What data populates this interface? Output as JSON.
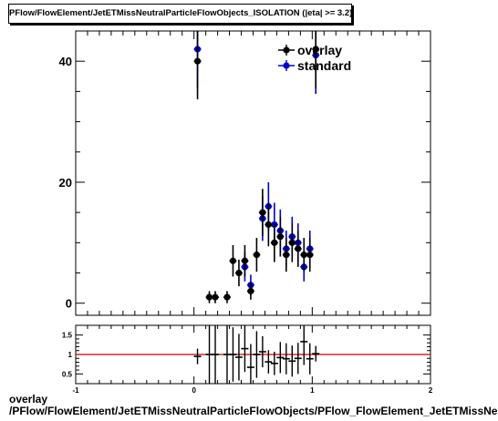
{
  "title": "PFlow/FlowElement/JetETMissNeutralParticleFlowObjects_ISOLATION (|eta| >= 3.2)",
  "caption": {
    "line1": "overlay",
    "line2": "/PFlow/FlowElement/JetETMissNeutralParticleFlowObjects/PFlow_FlowElement_JetETMissNeutralParticleFlowObjects_ISOLATION"
  },
  "colors": {
    "overlay": "#000000",
    "standard": "#0000cc",
    "ratio_line": "#cc0000"
  },
  "chart_data": [
    {
      "type": "scatter",
      "xlim": [
        -1,
        2
      ],
      "ylim": [
        -2,
        45
      ],
      "yticks": [
        0,
        20,
        40
      ],
      "legend": {
        "position": "top-right",
        "entries": [
          "overlay",
          "standard"
        ]
      },
      "series": [
        {
          "name": "overlay",
          "points": [
            {
              "x": 0.03,
              "y": 40,
              "err": 6.3
            },
            {
              "x": 0.13,
              "y": 1,
              "err": 1
            },
            {
              "x": 0.18,
              "y": 1,
              "err": 1
            },
            {
              "x": 0.28,
              "y": 1,
              "err": 1
            },
            {
              "x": 0.33,
              "y": 7,
              "err": 2.6
            },
            {
              "x": 0.38,
              "y": 5,
              "err": 2.2
            },
            {
              "x": 0.43,
              "y": 7,
              "err": 2.6
            },
            {
              "x": 0.48,
              "y": 2,
              "err": 1.4
            },
            {
              "x": 0.53,
              "y": 8,
              "err": 2.8
            },
            {
              "x": 0.58,
              "y": 15,
              "err": 3.9
            },
            {
              "x": 0.63,
              "y": 13,
              "err": 3.6
            },
            {
              "x": 0.68,
              "y": 10,
              "err": 3.2
            },
            {
              "x": 0.73,
              "y": 11,
              "err": 3.3
            },
            {
              "x": 0.78,
              "y": 8,
              "err": 2.8
            },
            {
              "x": 0.83,
              "y": 10,
              "err": 3.2
            },
            {
              "x": 0.88,
              "y": 9,
              "err": 3
            },
            {
              "x": 0.93,
              "y": 8,
              "err": 2.8
            },
            {
              "x": 0.98,
              "y": 8,
              "err": 2.8
            },
            {
              "x": 1.03,
              "y": 42,
              "err": 6.5
            }
          ]
        },
        {
          "name": "standard",
          "points": [
            {
              "x": 0.03,
              "y": 42,
              "err": 6.5
            },
            {
              "x": 0.43,
              "y": 6,
              "err": 2.4
            },
            {
              "x": 0.48,
              "y": 3,
              "err": 1.7
            },
            {
              "x": 0.58,
              "y": 14,
              "err": 3.7
            },
            {
              "x": 0.63,
              "y": 16,
              "err": 4
            },
            {
              "x": 0.68,
              "y": 13,
              "err": 3.6
            },
            {
              "x": 0.73,
              "y": 12,
              "err": 3.5
            },
            {
              "x": 0.78,
              "y": 9,
              "err": 3
            },
            {
              "x": 0.83,
              "y": 11,
              "err": 3.3
            },
            {
              "x": 0.88,
              "y": 10,
              "err": 3.2
            },
            {
              "x": 0.93,
              "y": 6,
              "err": 2.4
            },
            {
              "x": 0.98,
              "y": 9,
              "err": 3
            },
            {
              "x": 1.03,
              "y": 41,
              "err": 6.4
            }
          ]
        }
      ]
    },
    {
      "type": "scatter",
      "xlim": [
        -1,
        2
      ],
      "ylim": [
        0.25,
        1.75
      ],
      "xticks": [
        -1,
        0,
        1,
        2
      ],
      "yticks": [
        0.5,
        1,
        1.5
      ],
      "reference_line": 1,
      "series": [
        {
          "name": "overlay/standard",
          "points": [
            {
              "x": 0.03,
              "y": 0.95,
              "err": 0.2
            },
            {
              "x": 0.13,
              "y": 1.0,
              "err": 1.0
            },
            {
              "x": 0.18,
              "y": 1.0,
              "err": 1.0
            },
            {
              "x": 0.28,
              "y": 1.0,
              "err": 1.0
            },
            {
              "x": 0.33,
              "y": 1.0,
              "err": 0.7
            },
            {
              "x": 0.38,
              "y": 0.93,
              "err": 0.6
            },
            {
              "x": 0.43,
              "y": 1.15,
              "err": 0.6
            },
            {
              "x": 0.48,
              "y": 0.67,
              "err": 0.6
            },
            {
              "x": 0.53,
              "y": 1.0,
              "err": 0.6
            },
            {
              "x": 0.58,
              "y": 1.07,
              "err": 0.4
            },
            {
              "x": 0.63,
              "y": 0.81,
              "err": 0.3
            },
            {
              "x": 0.68,
              "y": 0.77,
              "err": 0.3
            },
            {
              "x": 0.73,
              "y": 0.92,
              "err": 0.4
            },
            {
              "x": 0.78,
              "y": 0.89,
              "err": 0.4
            },
            {
              "x": 0.83,
              "y": 0.83,
              "err": 0.4
            },
            {
              "x": 0.88,
              "y": 0.9,
              "err": 0.4
            },
            {
              "x": 0.93,
              "y": 1.33,
              "err": 0.6
            },
            {
              "x": 0.98,
              "y": 0.89,
              "err": 0.4
            },
            {
              "x": 1.03,
              "y": 1.02,
              "err": 0.2
            }
          ]
        }
      ]
    }
  ]
}
